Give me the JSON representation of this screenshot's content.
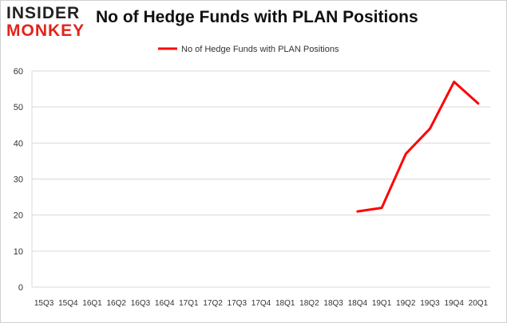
{
  "logo": {
    "line1": "INSIDER",
    "line2": "MONKEY",
    "accent_color": "#e2231a"
  },
  "chart_data": {
    "type": "line",
    "title": "No of Hedge Funds with PLAN Positions",
    "xlabel": "",
    "ylabel": "",
    "categories": [
      "15Q3",
      "15Q4",
      "16Q1",
      "16Q2",
      "16Q3",
      "16Q4",
      "17Q1",
      "17Q2",
      "17Q3",
      "17Q4",
      "18Q1",
      "18Q2",
      "18Q3",
      "18Q4",
      "19Q1",
      "19Q2",
      "19Q3",
      "19Q4",
      "20Q1"
    ],
    "series": [
      {
        "name": "No of Hedge Funds with PLAN Positions",
        "color": "#ff0000",
        "values": [
          null,
          null,
          null,
          null,
          null,
          null,
          null,
          null,
          null,
          null,
          null,
          null,
          null,
          21,
          22,
          37,
          44,
          57,
          51
        ]
      }
    ],
    "ylim": [
      0,
      60
    ],
    "yticks": [
      0,
      10,
      20,
      30,
      40,
      50,
      60
    ],
    "grid": true,
    "legend": "top-center"
  }
}
